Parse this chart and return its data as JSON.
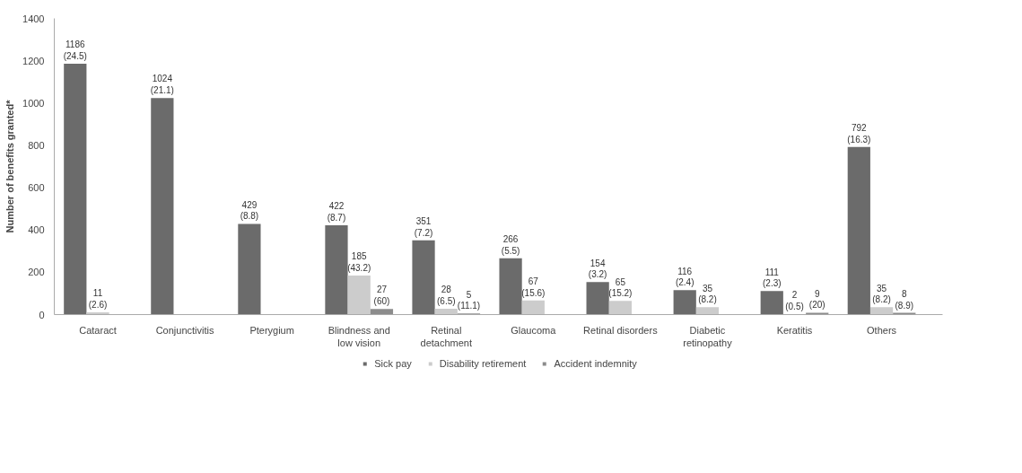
{
  "chart_data": {
    "type": "bar",
    "ylabel": "Number of benefits granted*",
    "categories": [
      "Cataract",
      "Conjunctivitis",
      "Pterygium",
      "Blindness and\nlow vision",
      "Retinal\ndetachment",
      "Glaucoma",
      "Retinal disorders",
      "Diabetic\nretinopathy",
      "Keratitis",
      "Others"
    ],
    "series": [
      {
        "name": "Sick pay",
        "color": "#6b6b6b",
        "values": [
          1186,
          1024,
          429,
          422,
          351,
          266,
          154,
          116,
          111,
          792
        ],
        "value_labels": [
          "1186 (24.5)",
          "1024 (21.1)",
          "429 (8.8)",
          "422 (8.7)",
          "351 (7.2)",
          "266 (5.5)",
          "154 (3.2)",
          "116 (2.4)",
          "111 (2.3)",
          "792 (16.3)"
        ]
      },
      {
        "name": "Disability retirement",
        "color": "#cccccc",
        "values": [
          11,
          null,
          null,
          185,
          28,
          67,
          65,
          35,
          2,
          35
        ],
        "value_labels": [
          "11 (2.6)",
          null,
          null,
          "185 (43.2)",
          "28 (6.5)",
          "67 (15.6)",
          "65 (15.2)",
          "35 (8.2)",
          "2 (0.5)",
          "35 (8.2)"
        ]
      },
      {
        "name": "Accident indemnity",
        "color": "#8c8c8c",
        "values": [
          null,
          null,
          null,
          27,
          5,
          null,
          null,
          null,
          9,
          8
        ],
        "value_labels": [
          null,
          null,
          null,
          "27 (60)",
          "5 (11.1)",
          null,
          null,
          null,
          "9 (20)",
          "8 (8.9)"
        ]
      }
    ],
    "ylim": [
      0,
      1400
    ],
    "yticks": [
      0,
      200,
      400,
      600,
      800,
      1000,
      1200,
      1400
    ],
    "grid": false,
    "legend": "bottom"
  }
}
